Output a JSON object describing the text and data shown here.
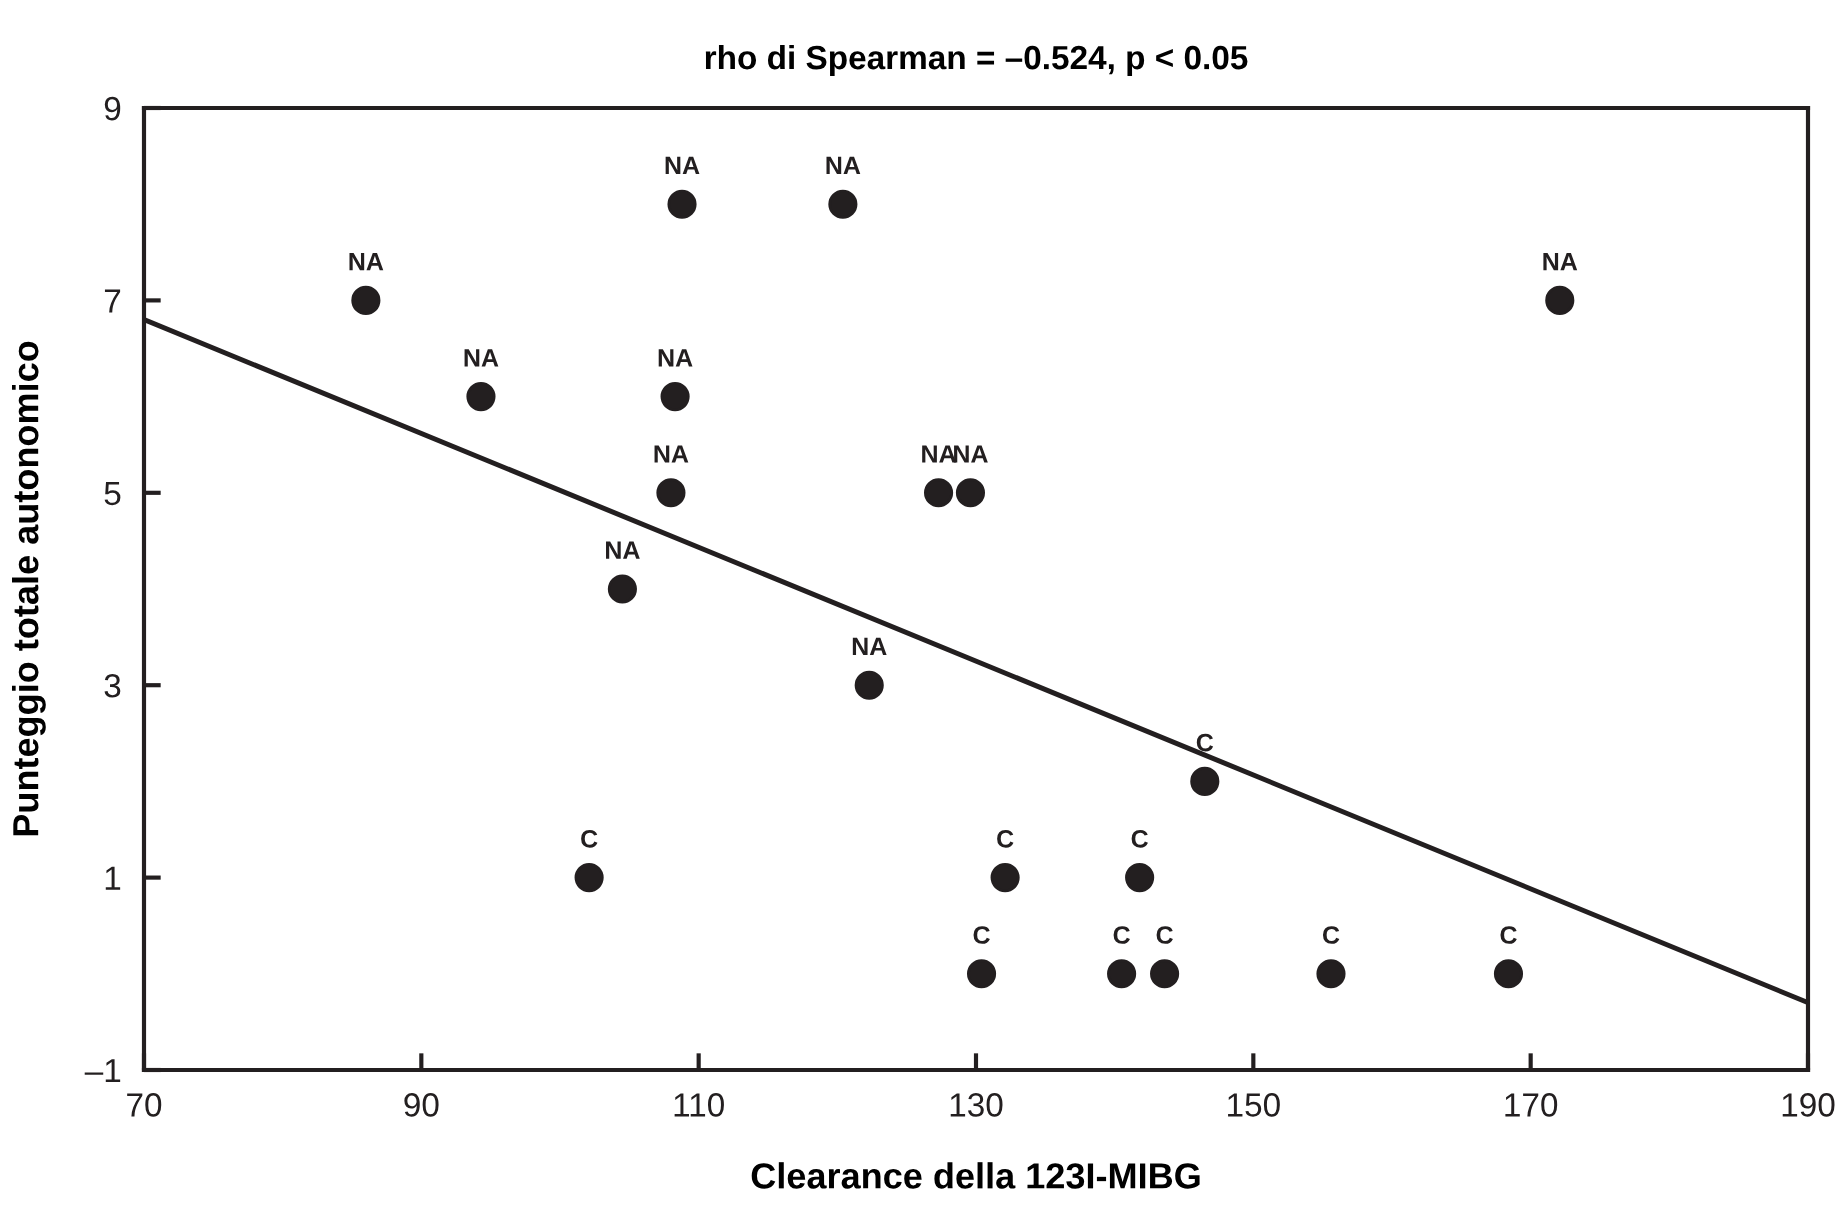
{
  "chart_data": {
    "type": "scatter",
    "title": "rho di Spearman = –0.524, p < 0.05",
    "xlabel": "Clearance della 123I-MIBG",
    "ylabel": "Punteggio totale autonomico",
    "xlim": [
      70,
      190
    ],
    "xticks": [
      70,
      90,
      110,
      130,
      150,
      170,
      190
    ],
    "ylim": [
      -1,
      9
    ],
    "yticks": [
      {
        "value": -1,
        "label": "–1"
      },
      1,
      3,
      5,
      7,
      9
    ],
    "grid": false,
    "legend": false,
    "marker": "circle",
    "series": [
      {
        "color": "#231f20",
        "x": [
          86.0,
          94.3,
          108.8,
          120.4,
          108.3,
          108.0,
          104.5,
          127.3,
          129.6,
          122.3,
          172.1,
          102.1,
          130.4,
          132.1,
          141.8,
          146.5,
          140.5,
          143.6,
          155.6,
          168.4
        ],
        "values": [
          7,
          6,
          8,
          8,
          6,
          5,
          4,
          5,
          5,
          3,
          7,
          1,
          0,
          1,
          1,
          2,
          0,
          0,
          0,
          0
        ],
        "value_labels": [
          "NA",
          "NA",
          "NA",
          "NA",
          "NA",
          "NA",
          "NA",
          "NA",
          "NA",
          "NA",
          "NA",
          "C",
          "C",
          "C",
          "C",
          "C",
          "C",
          "C",
          "C",
          "C"
        ]
      },
      {
        "type": "line",
        "marker": "none",
        "color": "#231f20",
        "x": [
          70,
          190
        ],
        "values": [
          6.8,
          -0.3
        ]
      }
    ]
  }
}
